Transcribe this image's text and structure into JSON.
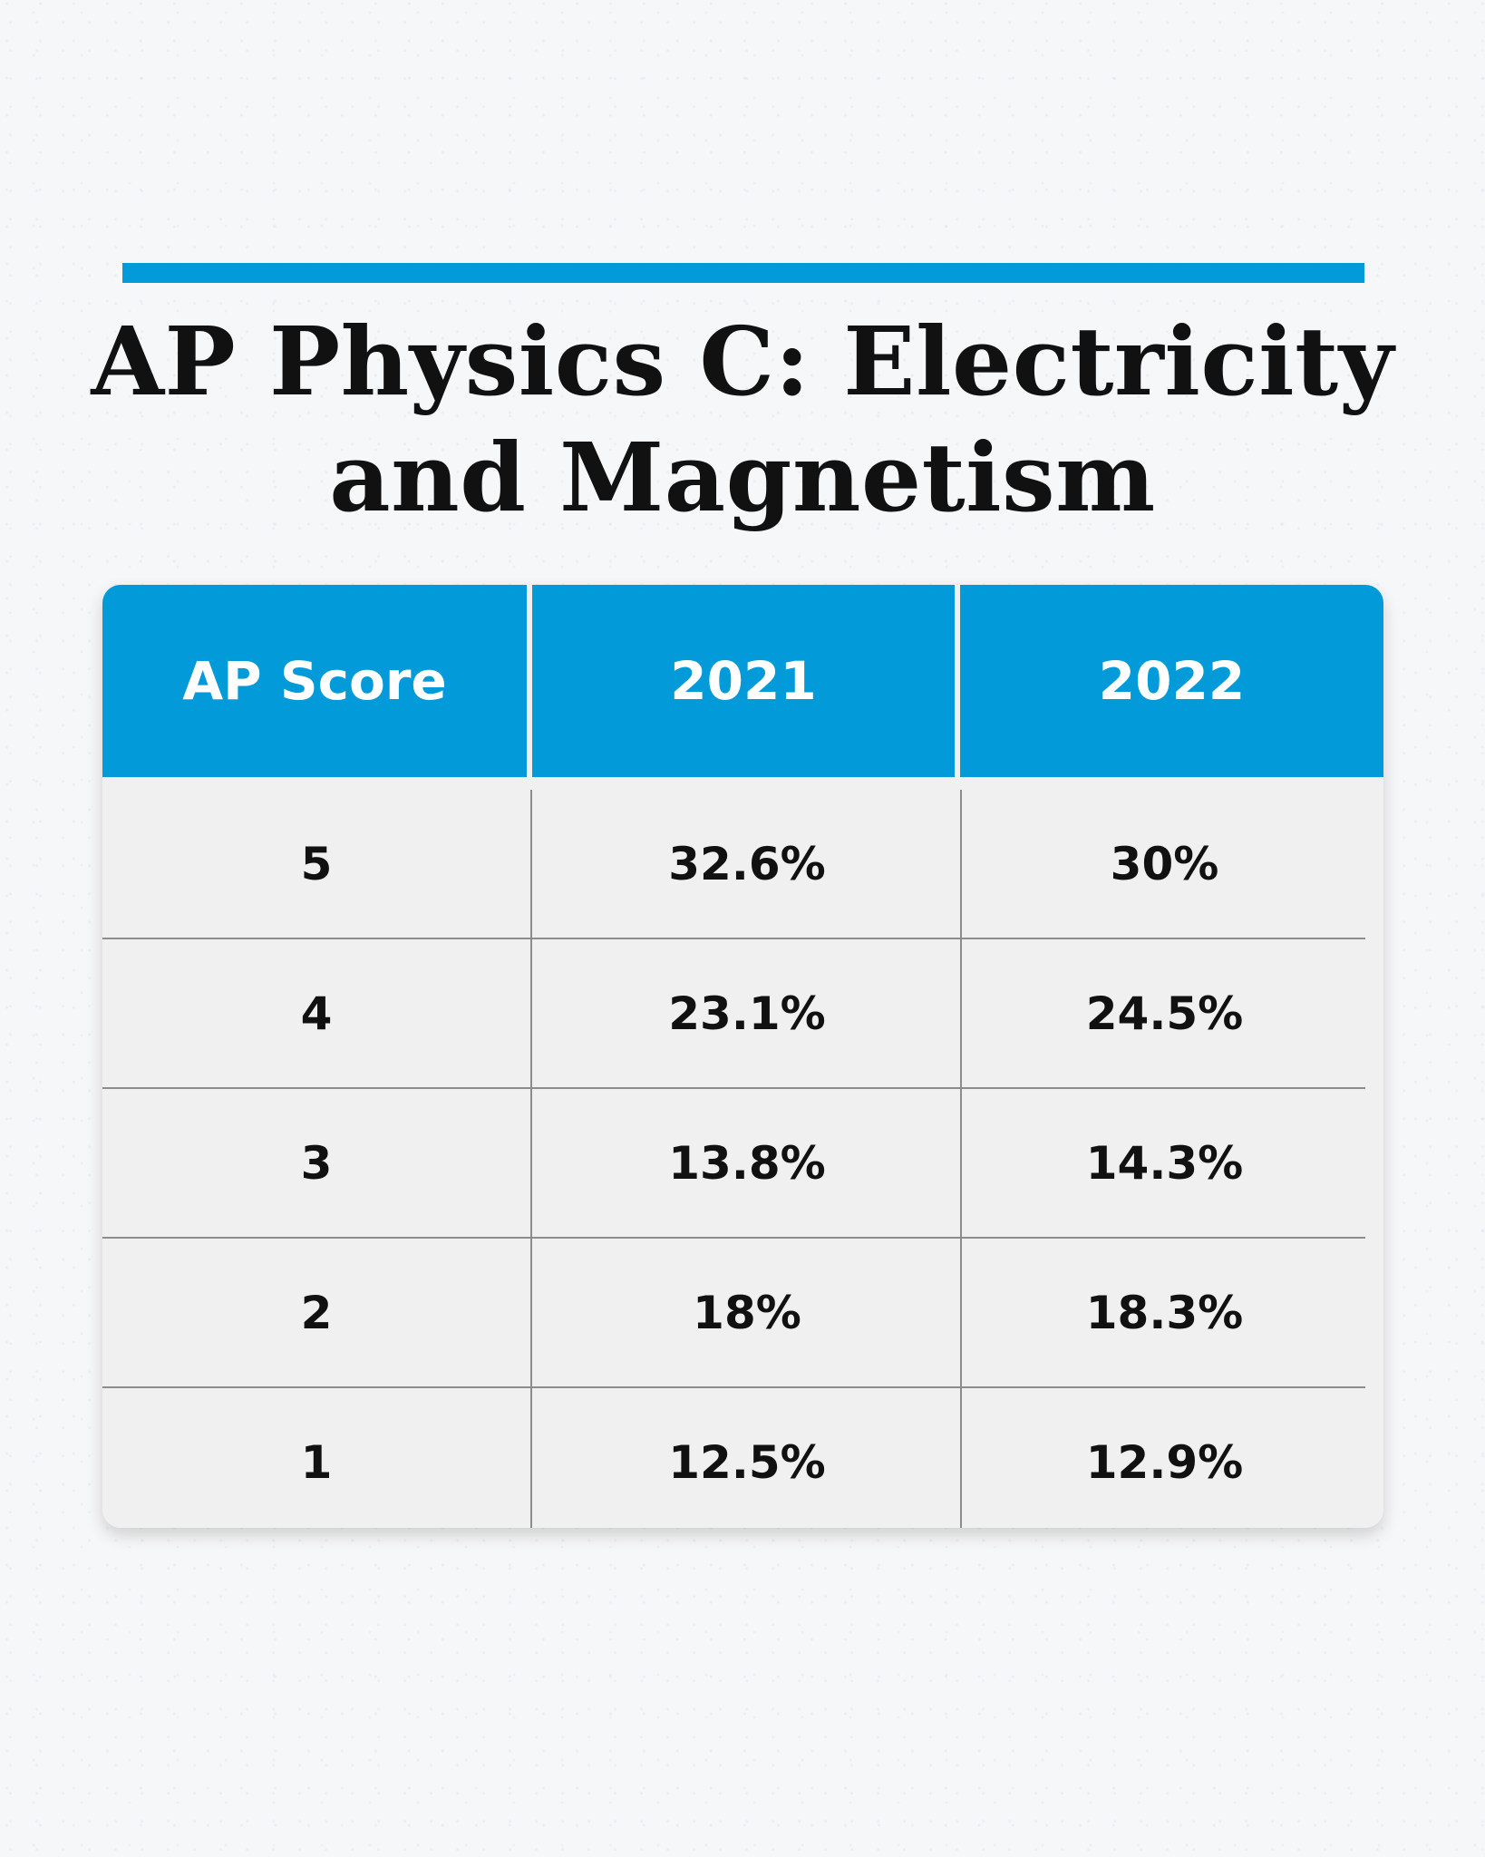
{
  "title": {
    "line1": "AP Physics C: Electricity",
    "line2": "and Magnetism"
  },
  "table": {
    "headers": [
      "AP Score",
      "2021",
      "2022"
    ],
    "rows": [
      [
        "5",
        "32.6%",
        "30%"
      ],
      [
        "4",
        "23.1%",
        "24.5%"
      ],
      [
        "3",
        "13.8%",
        "14.3%"
      ],
      [
        "2",
        "18%",
        "18.3%"
      ],
      [
        "1",
        "12.5%",
        "12.9%"
      ]
    ]
  },
  "colors": {
    "accent": "#039ad9",
    "card_background": "#f0f0f1",
    "text": "#111111"
  },
  "chart_data": {
    "type": "table",
    "title": "AP Physics C: Electricity and Magnetism",
    "columns": [
      "AP Score",
      "2021",
      "2022"
    ],
    "categories": [
      "5",
      "4",
      "3",
      "2",
      "1"
    ],
    "series": [
      {
        "name": "2021",
        "values": [
          32.6,
          23.1,
          13.8,
          18,
          12.5
        ]
      },
      {
        "name": "2022",
        "values": [
          30,
          24.5,
          14.3,
          18.3,
          12.9
        ]
      }
    ]
  }
}
